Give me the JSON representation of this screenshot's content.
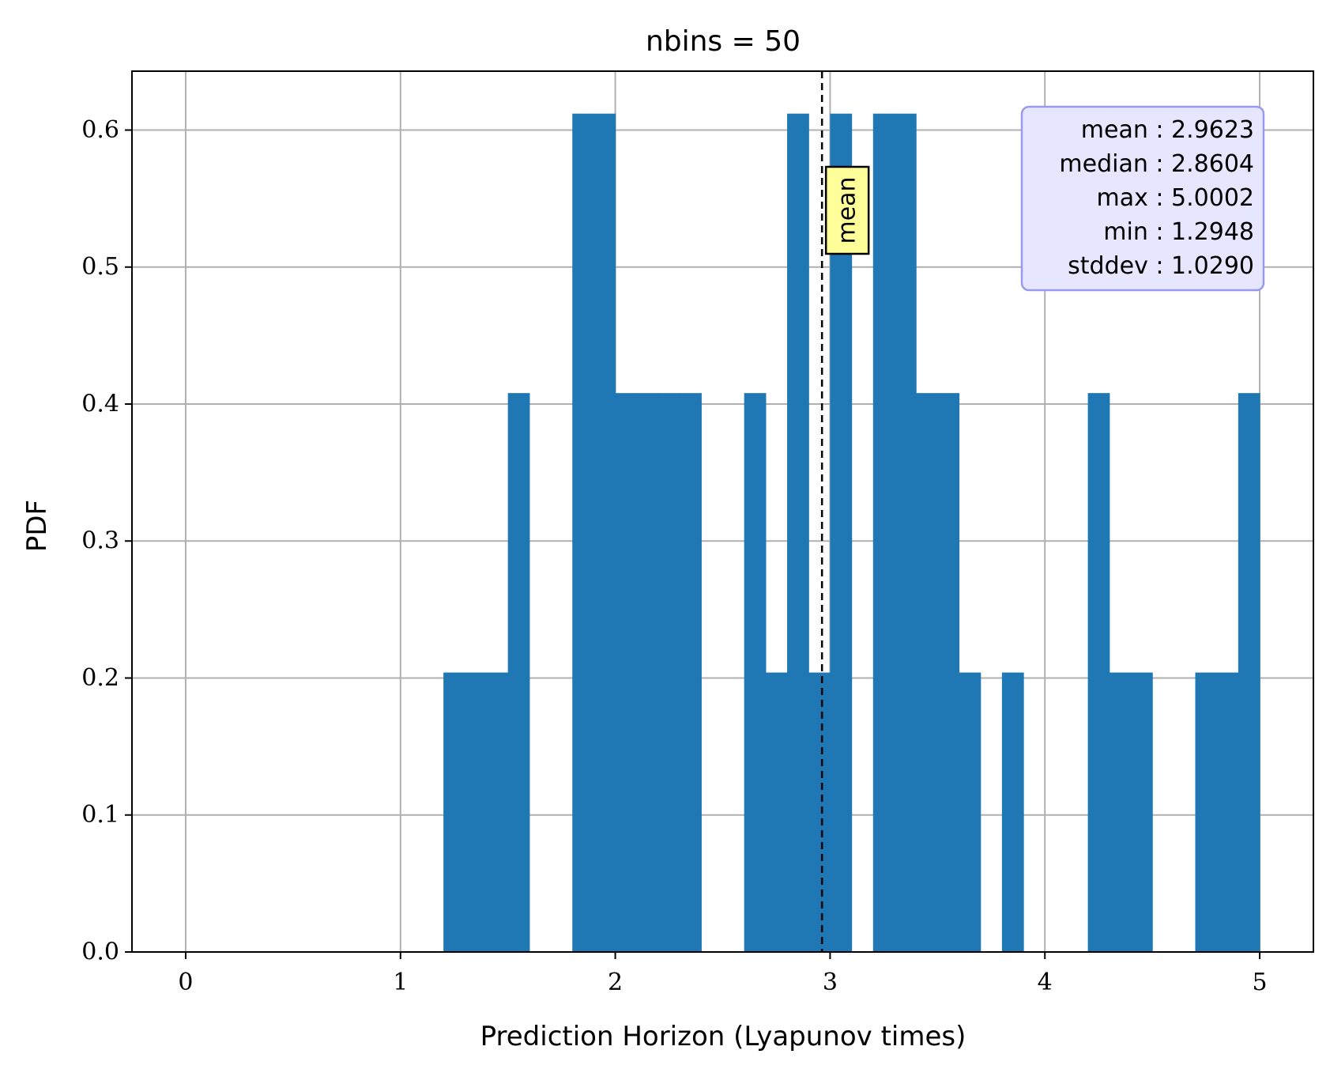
{
  "chart_data": {
    "type": "bar",
    "title": "nbins = 50",
    "xlabel": "Prediction Horizon (Lyapunov times)",
    "ylabel": "PDF",
    "xlim": [
      -0.25,
      5.25
    ],
    "ylim": [
      0.0,
      0.643
    ],
    "x_ticks": [
      0,
      1,
      2,
      3,
      4,
      5
    ],
    "x_tick_labels": [
      "0",
      "1",
      "2",
      "3",
      "4",
      "5"
    ],
    "y_ticks": [
      0.0,
      0.1,
      0.2,
      0.3,
      0.4,
      0.5,
      0.6
    ],
    "y_tick_labels": [
      "0.0",
      "0.1",
      "0.2",
      "0.3",
      "0.4",
      "0.5",
      "0.6"
    ],
    "grid": true,
    "bar_color": "#1f77b4",
    "bins": [
      {
        "x0": 1.2,
        "x1": 1.3,
        "value": 0.204
      },
      {
        "x0": 1.3,
        "x1": 1.4,
        "value": 0.204
      },
      {
        "x0": 1.4,
        "x1": 1.5,
        "value": 0.204
      },
      {
        "x0": 1.5,
        "x1": 1.6,
        "value": 0.408
      },
      {
        "x0": 1.8,
        "x1": 1.9,
        "value": 0.612
      },
      {
        "x0": 1.9,
        "x1": 2.0,
        "value": 0.612
      },
      {
        "x0": 2.0,
        "x1": 2.1,
        "value": 0.408
      },
      {
        "x0": 2.1,
        "x1": 2.2,
        "value": 0.408
      },
      {
        "x0": 2.2,
        "x1": 2.3,
        "value": 0.408
      },
      {
        "x0": 2.3,
        "x1": 2.4,
        "value": 0.408
      },
      {
        "x0": 2.6,
        "x1": 2.7,
        "value": 0.408
      },
      {
        "x0": 2.7,
        "x1": 2.8,
        "value": 0.204
      },
      {
        "x0": 2.8,
        "x1": 2.9,
        "value": 0.612
      },
      {
        "x0": 2.9,
        "x1": 3.0,
        "value": 0.204
      },
      {
        "x0": 3.0,
        "x1": 3.1,
        "value": 0.612
      },
      {
        "x0": 3.2,
        "x1": 3.3,
        "value": 0.612
      },
      {
        "x0": 3.3,
        "x1": 3.4,
        "value": 0.612
      },
      {
        "x0": 3.4,
        "x1": 3.5,
        "value": 0.408
      },
      {
        "x0": 3.5,
        "x1": 3.6,
        "value": 0.408
      },
      {
        "x0": 3.6,
        "x1": 3.7,
        "value": 0.204
      },
      {
        "x0": 3.8,
        "x1": 3.9,
        "value": 0.204
      },
      {
        "x0": 4.2,
        "x1": 4.3,
        "value": 0.408
      },
      {
        "x0": 4.3,
        "x1": 4.4,
        "value": 0.204
      },
      {
        "x0": 4.4,
        "x1": 4.5,
        "value": 0.204
      },
      {
        "x0": 4.7,
        "x1": 4.8,
        "value": 0.204
      },
      {
        "x0": 4.8,
        "x1": 4.9,
        "value": 0.204
      },
      {
        "x0": 4.9,
        "x1": 5.0,
        "value": 0.408
      }
    ],
    "mean_line": {
      "x": 2.9623,
      "label": "mean",
      "label_color": "#ffff99",
      "style": "dashed"
    },
    "stats_box": {
      "background": "#e6e6ff",
      "border": "#9999ee",
      "rows": [
        {
          "label": "mean",
          "value": "2.9623"
        },
        {
          "label": "median",
          "value": "2.8604"
        },
        {
          "label": "max",
          "value": "5.0002"
        },
        {
          "label": "min",
          "value": "1.2948"
        },
        {
          "label": "stddev",
          "value": "1.0290"
        }
      ]
    }
  }
}
